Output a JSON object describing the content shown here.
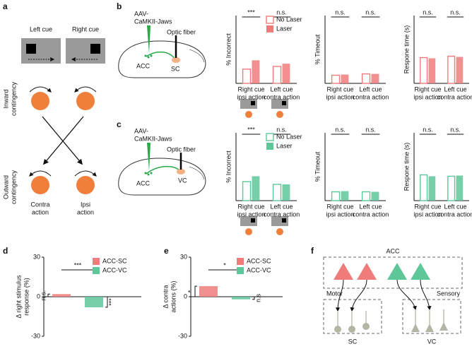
{
  "panel_labels": [
    "a",
    "b",
    "c",
    "d",
    "e",
    "f"
  ],
  "diagram_a": {
    "cues": [
      "Left cue",
      "Right cue"
    ],
    "inward": [
      "Inward",
      "contingency"
    ],
    "outward": [
      "Outward",
      "contingency"
    ],
    "actions": [
      [
        "Contra",
        "action"
      ],
      [
        "Ipsi",
        "action"
      ]
    ]
  },
  "diagram_b": {
    "virus": [
      "AAV-",
      "CaMKII-Jaws"
    ],
    "fiber": "Optic fiber",
    "source": "ACC",
    "target": "SC"
  },
  "diagram_c": {
    "virus": [
      "AAV-",
      "CaMKII-Jaws"
    ],
    "fiber": "Optic fiber",
    "source": "ACC",
    "target": "VC"
  },
  "diagram_f": {
    "top": "ACC",
    "left": "Motor",
    "right": "Sensory",
    "bottom_left": "SC",
    "bottom_right": "VC"
  },
  "chart_data": [
    {
      "type": "bar",
      "ylabel": "% Incorrect",
      "ylim": [
        0,
        100
      ],
      "categories": [
        [
          "Right cue",
          "ipsi action"
        ],
        [
          "Left cue",
          "contra action"
        ]
      ],
      "sig": [
        "***",
        "n.s."
      ],
      "legend": "upper right",
      "series": [
        {
          "name": "No Laser",
          "color": "#f07b7b",
          "hollow": true,
          "values": [
            21,
            25
          ]
        },
        {
          "name": "Laser",
          "color": "#f07b7b",
          "hollow": false,
          "values": [
            34,
            29
          ]
        }
      ]
    },
    {
      "type": "bar",
      "ylabel": "% Timeout",
      "ylim": [
        0,
        100
      ],
      "categories": [
        [
          "Right cue",
          "ipsi action"
        ],
        [
          "Left cue",
          "contra action"
        ]
      ],
      "sig": [
        "n.s.",
        "n.s."
      ],
      "series": [
        {
          "color": "#f07b7b",
          "hollow": true,
          "values": [
            12,
            14
          ]
        },
        {
          "color": "#f07b7b",
          "hollow": false,
          "values": [
            13,
            14
          ]
        }
      ]
    },
    {
      "type": "bar",
      "ylabel": "Respone time (s)",
      "ylim": [
        0,
        1
      ],
      "categories": [
        [
          "Right cue",
          "ipsi action"
        ],
        [
          "Left cue",
          "contra action"
        ]
      ],
      "sig": [
        "n.s.",
        "n.s."
      ],
      "series": [
        {
          "color": "#f07b7b",
          "hollow": true,
          "values": [
            0.38,
            0.4
          ]
        },
        {
          "color": "#f07b7b",
          "hollow": false,
          "values": [
            0.37,
            0.39
          ]
        }
      ]
    },
    {
      "type": "bar",
      "ylabel": "% Incorrect",
      "ylim": [
        0,
        100
      ],
      "categories": [
        [
          "Right cue",
          "ipsi action"
        ],
        [
          "Left cue",
          "contra action"
        ]
      ],
      "sig": [
        "***",
        "n.s."
      ],
      "legend": "upper right",
      "series": [
        {
          "name": "No Laser",
          "color": "#5ec79a",
          "hollow": true,
          "values": [
            28,
            24
          ]
        },
        {
          "name": "Laser",
          "color": "#5ec79a",
          "hollow": false,
          "values": [
            36,
            24
          ]
        }
      ]
    },
    {
      "type": "bar",
      "ylabel": "% Timeout",
      "ylim": [
        0,
        100
      ],
      "categories": [
        [
          "Right cue",
          "ipsi action"
        ],
        [
          "Left cue",
          "contra action"
        ]
      ],
      "sig": [
        "n.s.",
        "n.s."
      ],
      "series": [
        {
          "color": "#5ec79a",
          "hollow": true,
          "values": [
            13,
            13
          ]
        },
        {
          "color": "#5ec79a",
          "hollow": false,
          "values": [
            14,
            13
          ]
        }
      ]
    },
    {
      "type": "bar",
      "ylabel": "Respone time (s)",
      "ylim": [
        0,
        1
      ],
      "categories": [
        [
          "Right cue",
          "ipsi action"
        ],
        [
          "Left cue",
          "contra action"
        ]
      ],
      "sig": [
        "n.s.",
        "n.s."
      ],
      "series": [
        {
          "color": "#5ec79a",
          "hollow": true,
          "values": [
            0.38,
            0.36
          ]
        },
        {
          "color": "#5ec79a",
          "hollow": false,
          "values": [
            0.36,
            0.37
          ]
        }
      ]
    },
    {
      "type": "bar",
      "ylabel": [
        "Δ right stimulus",
        "response (%)"
      ],
      "ylim": [
        -30,
        30
      ],
      "yticks": [
        30,
        0,
        -30
      ],
      "legend": "upper right",
      "sig_between": "***",
      "sig_vs_zero": [
        "n.s.",
        "***"
      ],
      "series": [
        {
          "name": "ACC-SC",
          "color": "#f07b7b",
          "values": [
            2
          ]
        },
        {
          "name": "ACC-VC",
          "color": "#5ec79a",
          "values": [
            -8
          ]
        }
      ]
    },
    {
      "type": "bar",
      "ylabel": [
        "Δ contra",
        "actions (%)"
      ],
      "ylim": [
        -30,
        30
      ],
      "yticks": [
        30,
        0,
        -30
      ],
      "legend": "upper right",
      "sig_between": "*",
      "sig_vs_zero": [
        "*",
        "n.s"
      ],
      "series": [
        {
          "name": "ACC-SC",
          "color": "#f07b7b",
          "values": [
            8
          ]
        },
        {
          "name": "ACC-VC",
          "color": "#5ec79a",
          "values": [
            -2
          ]
        }
      ]
    }
  ]
}
